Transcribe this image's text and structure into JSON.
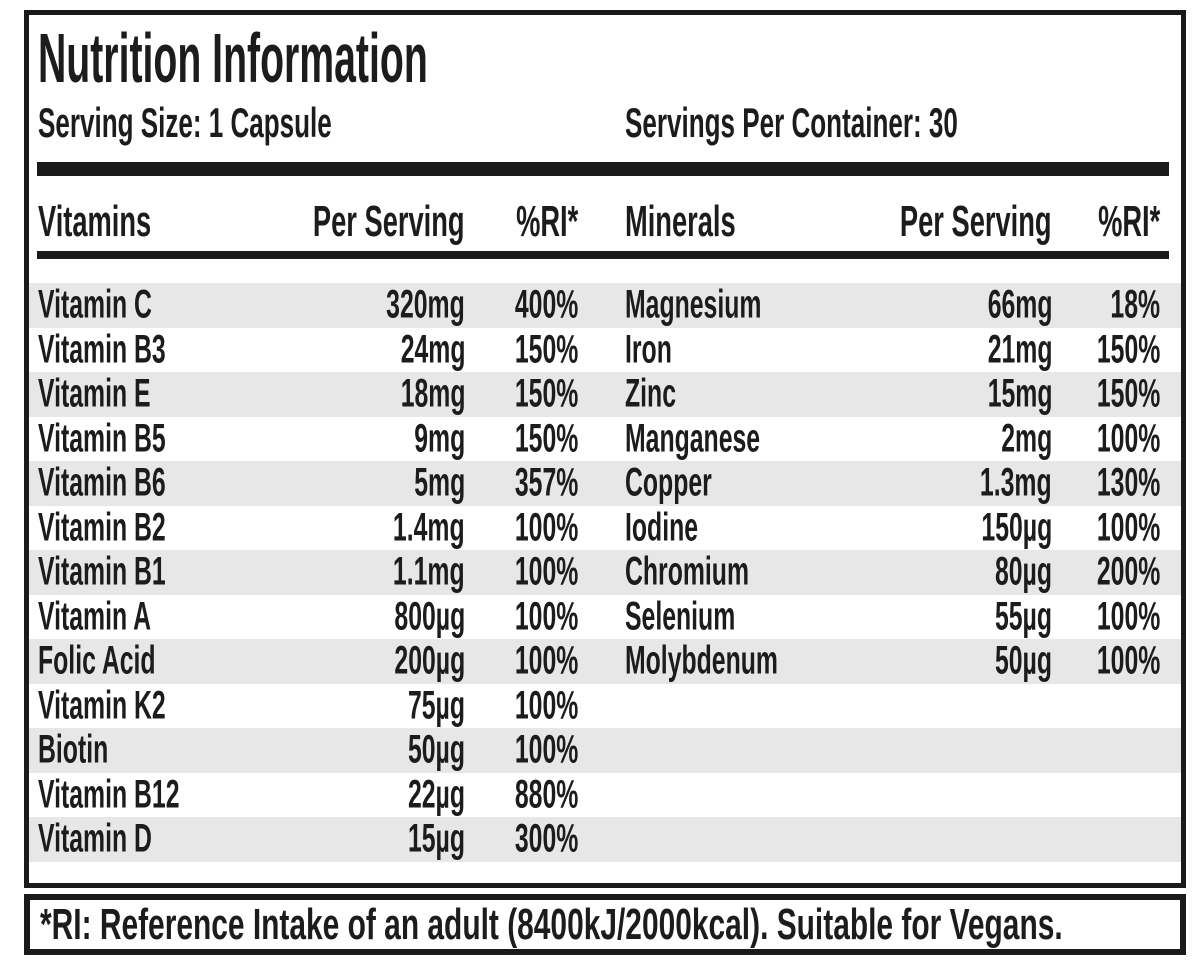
{
  "label": {
    "title": "Nutrition Information",
    "serving_size": "Serving Size: 1 Capsule",
    "servings_per_container": "Servings Per Container: 30",
    "footnote": "*RI: Reference Intake of an adult (8400kJ/2000kcal). Suitable for Vegans."
  },
  "columns": {
    "vitamins_header": "Vitamins",
    "minerals_header": "Minerals",
    "per_serving_header": "Per Serving",
    "ri_header": "%RI*"
  },
  "vitamins": [
    {
      "name": "Vitamin C",
      "amount": "320mg",
      "ri": "400%"
    },
    {
      "name": "Vitamin B3",
      "amount": "24mg",
      "ri": "150%"
    },
    {
      "name": "Vitamin E",
      "amount": "18mg",
      "ri": "150%"
    },
    {
      "name": "Vitamin B5",
      "amount": "9mg",
      "ri": "150%"
    },
    {
      "name": "Vitamin B6",
      "amount": "5mg",
      "ri": "357%"
    },
    {
      "name": "Vitamin B2",
      "amount": "1.4mg",
      "ri": "100%"
    },
    {
      "name": "Vitamin B1",
      "amount": "1.1mg",
      "ri": "100%"
    },
    {
      "name": "Vitamin A",
      "amount": "800µg",
      "ri": "100%"
    },
    {
      "name": "Folic Acid",
      "amount": "200µg",
      "ri": "100%"
    },
    {
      "name": "Vitamin K2",
      "amount": "75µg",
      "ri": "100%"
    },
    {
      "name": "Biotin",
      "amount": "50µg",
      "ri": "100%"
    },
    {
      "name": "Vitamin B12",
      "amount": "22µg",
      "ri": "880%"
    },
    {
      "name": "Vitamin D",
      "amount": "15µg",
      "ri": "300%"
    }
  ],
  "minerals": [
    {
      "name": "Magnesium",
      "amount": "66mg",
      "ri": "18%"
    },
    {
      "name": "Iron",
      "amount": "21mg",
      "ri": "150%"
    },
    {
      "name": "Zinc",
      "amount": "15mg",
      "ri": "150%"
    },
    {
      "name": "Manganese",
      "amount": "2mg",
      "ri": "100%"
    },
    {
      "name": "Copper",
      "amount": "1.3mg",
      "ri": "130%"
    },
    {
      "name": "Iodine",
      "amount": "150µg",
      "ri": "100%"
    },
    {
      "name": "Chromium",
      "amount": "80µg",
      "ri": "200%"
    },
    {
      "name": "Selenium",
      "amount": "55µg",
      "ri": "100%"
    },
    {
      "name": "Molybdenum",
      "amount": "50µg",
      "ri": "100%"
    }
  ],
  "colors": {
    "text": "#1c1c1c",
    "border": "#1a1a1a",
    "stripe": "#e7e7e7",
    "background": "#ffffff"
  }
}
